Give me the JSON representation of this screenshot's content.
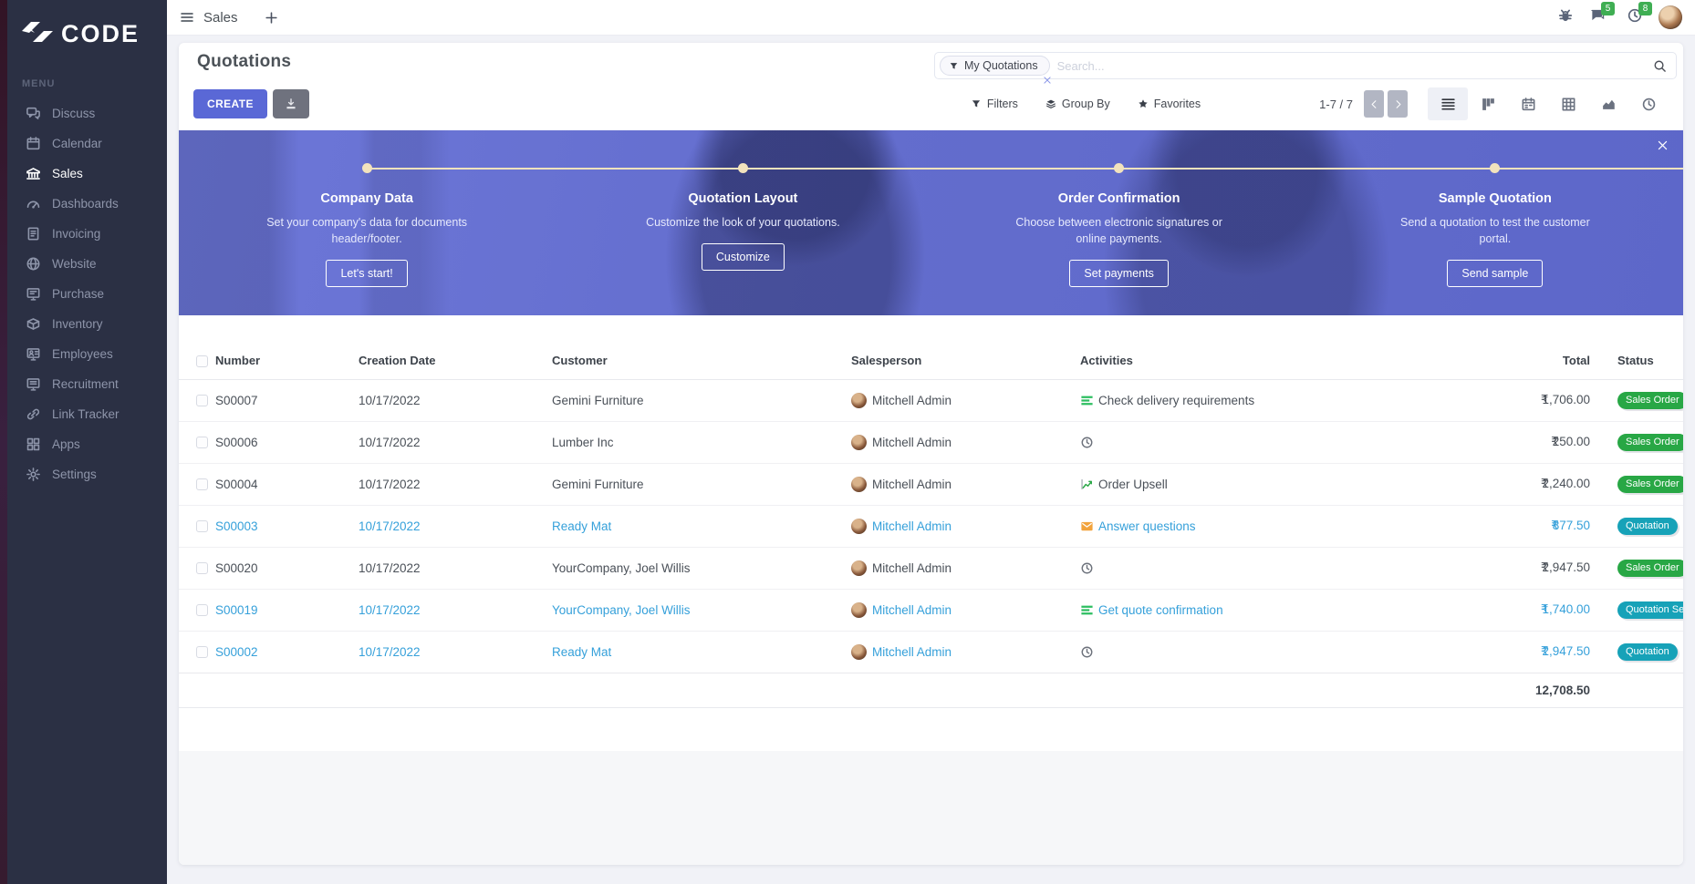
{
  "brand": {
    "name": "CODE"
  },
  "topbar": {
    "app_title": "Sales",
    "badges": {
      "messages": "5",
      "activities": "8"
    },
    "icons": [
      "menu-icon",
      "plus-icon",
      "bug-icon",
      "chat-icon",
      "clock-icon",
      "user-avatar"
    ]
  },
  "sidebar": {
    "menu_label": "MENU",
    "items": [
      {
        "label": "Discuss",
        "icon": "discuss",
        "active": false
      },
      {
        "label": "Calendar",
        "icon": "calendar",
        "active": false
      },
      {
        "label": "Sales",
        "icon": "sales",
        "active": true
      },
      {
        "label": "Dashboards",
        "icon": "dashboards",
        "active": false
      },
      {
        "label": "Invoicing",
        "icon": "invoicing",
        "active": false
      },
      {
        "label": "Website",
        "icon": "website",
        "active": false
      },
      {
        "label": "Purchase",
        "icon": "purchase",
        "active": false
      },
      {
        "label": "Inventory",
        "icon": "inventory",
        "active": false
      },
      {
        "label": "Employees",
        "icon": "employees",
        "active": false
      },
      {
        "label": "Recruitment",
        "icon": "recruitment",
        "active": false
      },
      {
        "label": "Link Tracker",
        "icon": "link",
        "active": false
      },
      {
        "label": "Apps",
        "icon": "apps",
        "active": false
      },
      {
        "label": "Settings",
        "icon": "settings",
        "active": false
      }
    ]
  },
  "page": {
    "title": "Quotations",
    "create_label": "CREATE"
  },
  "search": {
    "facet": "My Quotations",
    "placeholder": "Search..."
  },
  "controls": {
    "filters": "Filters",
    "group_by": "Group By",
    "favorites": "Favorites",
    "pager": "1-7 / 7"
  },
  "views": [
    {
      "name": "list",
      "icon": "view-list",
      "active": true
    },
    {
      "name": "kanban",
      "icon": "view-kanban",
      "active": false
    },
    {
      "name": "calendar",
      "icon": "view-calendar",
      "active": false
    },
    {
      "name": "pivot",
      "icon": "view-pivot",
      "active": false
    },
    {
      "name": "graph",
      "icon": "view-graph",
      "active": false
    },
    {
      "name": "activity",
      "icon": "view-activity",
      "active": false
    }
  ],
  "banner": {
    "steps": [
      {
        "title": "Company Data",
        "description": "Set your company's data for documents header/footer.",
        "button": "Let's start!"
      },
      {
        "title": "Quotation Layout",
        "description": "Customize the look of your quotations.",
        "button": "Customize"
      },
      {
        "title": "Order Confirmation",
        "description": "Choose between electronic signatures or online payments.",
        "button": "Set payments"
      },
      {
        "title": "Sample Quotation",
        "description": "Send a quotation to test the customer portal.",
        "button": "Send sample"
      }
    ]
  },
  "table": {
    "columns": [
      "Number",
      "Creation Date",
      "Customer",
      "Salesperson",
      "Activities",
      "Total",
      "Status"
    ],
    "rows": [
      {
        "number": "S00007",
        "creation_date": "10/17/2022",
        "customer": "Gemini Furniture",
        "salesperson": "Mitchell Admin",
        "activity": {
          "icon": "tasks",
          "label": "Check delivery requirements"
        },
        "total_currency": "₹",
        "total": "1,706.00",
        "status": "Sales Order",
        "status_variant": "success",
        "row_variant": "default"
      },
      {
        "number": "S00006",
        "creation_date": "10/17/2022",
        "customer": "Lumber Inc",
        "salesperson": "Mitchell Admin",
        "activity": {
          "icon": "clock",
          "label": ""
        },
        "total_currency": "₹",
        "total": "250.00",
        "status": "Sales Order",
        "status_variant": "success",
        "row_variant": "default"
      },
      {
        "number": "S00004",
        "creation_date": "10/17/2022",
        "customer": "Gemini Furniture",
        "salesperson": "Mitchell Admin",
        "activity": {
          "icon": "chart",
          "label": "Order Upsell"
        },
        "total_currency": "₹",
        "total": "2,240.00",
        "status": "Sales Order",
        "status_variant": "success",
        "row_variant": "default"
      },
      {
        "number": "S00003",
        "creation_date": "10/17/2022",
        "customer": "Ready Mat",
        "salesperson": "Mitchell Admin",
        "activity": {
          "icon": "envelope",
          "label": "Answer questions"
        },
        "total_currency": "₹",
        "total": "877.50",
        "status": "Quotation",
        "status_variant": "info",
        "row_variant": "info"
      },
      {
        "number": "S00020",
        "creation_date": "10/17/2022",
        "customer": "YourCompany, Joel Willis",
        "salesperson": "Mitchell Admin",
        "activity": {
          "icon": "clock",
          "label": ""
        },
        "total_currency": "₹",
        "total": "2,947.50",
        "status": "Sales Order",
        "status_variant": "success",
        "row_variant": "default"
      },
      {
        "number": "S00019",
        "creation_date": "10/17/2022",
        "customer": "YourCompany, Joel Willis",
        "salesperson": "Mitchell Admin",
        "activity": {
          "icon": "tasks",
          "label": "Get quote confirmation"
        },
        "total_currency": "₹",
        "total": "1,740.00",
        "status": "Quotation Sent",
        "status_variant": "info",
        "row_variant": "info"
      },
      {
        "number": "S00002",
        "creation_date": "10/17/2022",
        "customer": "Ready Mat",
        "salesperson": "Mitchell Admin",
        "activity": {
          "icon": "clock",
          "label": ""
        },
        "total_currency": "₹",
        "total": "2,947.50",
        "status": "Quotation",
        "status_variant": "info",
        "row_variant": "info"
      }
    ],
    "footer_total": "12,708.50"
  },
  "colors": {
    "primary": "#5a68d6",
    "success": "#28a745",
    "info": "#17a2b8",
    "row_link": "#35a0da",
    "sidebar_bg": "#2b3044",
    "banner_accent": "#f2e3bd"
  }
}
